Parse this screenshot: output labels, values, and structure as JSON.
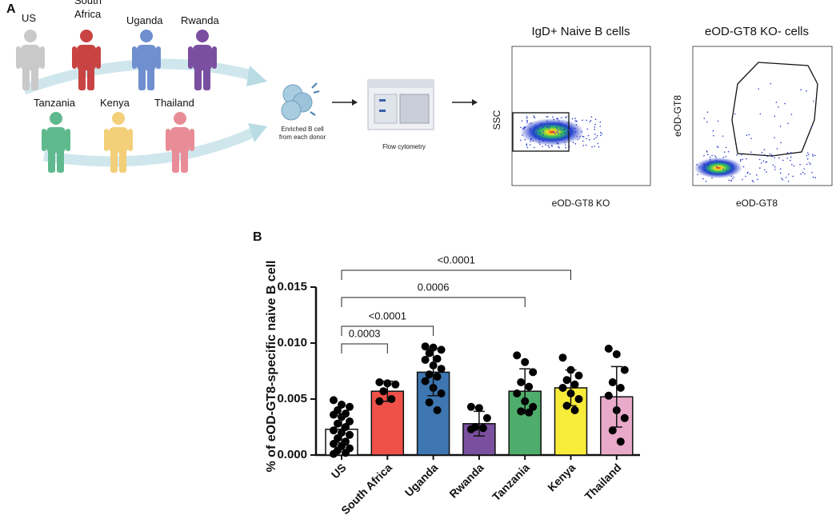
{
  "panel_a": {
    "letter": "A",
    "donors": [
      "US",
      "South Africa",
      "Uganda",
      "Rwanda",
      "Tanzania",
      "Kenya",
      "Thailand"
    ],
    "enrich_label": "Enriched B cell from each donor",
    "cytometry_label": "Flow cytometry",
    "plot1": {
      "title": "IgD+ Naive B cells",
      "ylabel": "SSC",
      "xlabel": "eOD-GT8 KO"
    },
    "plot2": {
      "title": "eOD-GT8 KO- cells",
      "ylabel": "eOD-GT8",
      "xlabel": "eOD-GT8"
    }
  },
  "panel_b_letter": "B",
  "chart_data": {
    "type": "bar",
    "ylabel": "% of eOD-GT8-specific naive B cell",
    "categories": [
      "US",
      "South Africa",
      "Uganda",
      "Rwanda",
      "Tanzania",
      "Kenya",
      "Thailand"
    ],
    "values": [
      0.0023,
      0.0057,
      0.0074,
      0.0028,
      0.0057,
      0.006,
      0.0052
    ],
    "errors": [
      0.0012,
      0.0009,
      0.0021,
      0.0011,
      0.002,
      0.0016,
      0.0027
    ],
    "colors": [
      "#ffffff",
      "#ef5148",
      "#3d76b0",
      "#7b4f9f",
      "#4fad6b",
      "#f8ec3a",
      "#e9a9c9"
    ],
    "points": [
      [
        0.0049,
        0.0045,
        0.0043,
        0.004,
        0.0037,
        0.0036,
        0.0034,
        0.003,
        0.0028,
        0.0025,
        0.0022,
        0.002,
        0.0018,
        0.0015,
        0.0012,
        0.001,
        0.0008,
        0.0006,
        0.0004,
        0.0002,
        0.0001
      ],
      [
        0.0065,
        0.0064,
        0.0063,
        0.0057,
        0.005,
        0.0048
      ],
      [
        0.0097,
        0.0096,
        0.0094,
        0.0091,
        0.0086,
        0.0085,
        0.008,
        0.0077,
        0.0072,
        0.007,
        0.0066,
        0.006,
        0.0055,
        0.0047,
        0.004
      ],
      [
        0.0043,
        0.0042,
        0.0033,
        0.0025,
        0.0024,
        0.0023
      ],
      [
        0.0089,
        0.0083,
        0.0074,
        0.0065,
        0.0061,
        0.0055,
        0.0048,
        0.0043,
        0.0039,
        0.0038
      ],
      [
        0.0087,
        0.0076,
        0.0071,
        0.0067,
        0.0063,
        0.006,
        0.0055,
        0.005,
        0.0044,
        0.004
      ],
      [
        0.0095,
        0.009,
        0.0076,
        0.0065,
        0.006,
        0.0053,
        0.004,
        0.0033,
        0.0022,
        0.0012
      ]
    ],
    "ylim": [
      0,
      0.015
    ],
    "yticks": [
      {
        "value": 0,
        "label": "0.000"
      },
      {
        "value": 0.005,
        "label": "0.005"
      },
      {
        "value": 0.01,
        "label": "0.010"
      },
      {
        "value": 0.015,
        "label": "0.015"
      }
    ],
    "annotations": [
      "0.0003",
      "<0.0001",
      "0.0006",
      "<0.0001"
    ]
  }
}
